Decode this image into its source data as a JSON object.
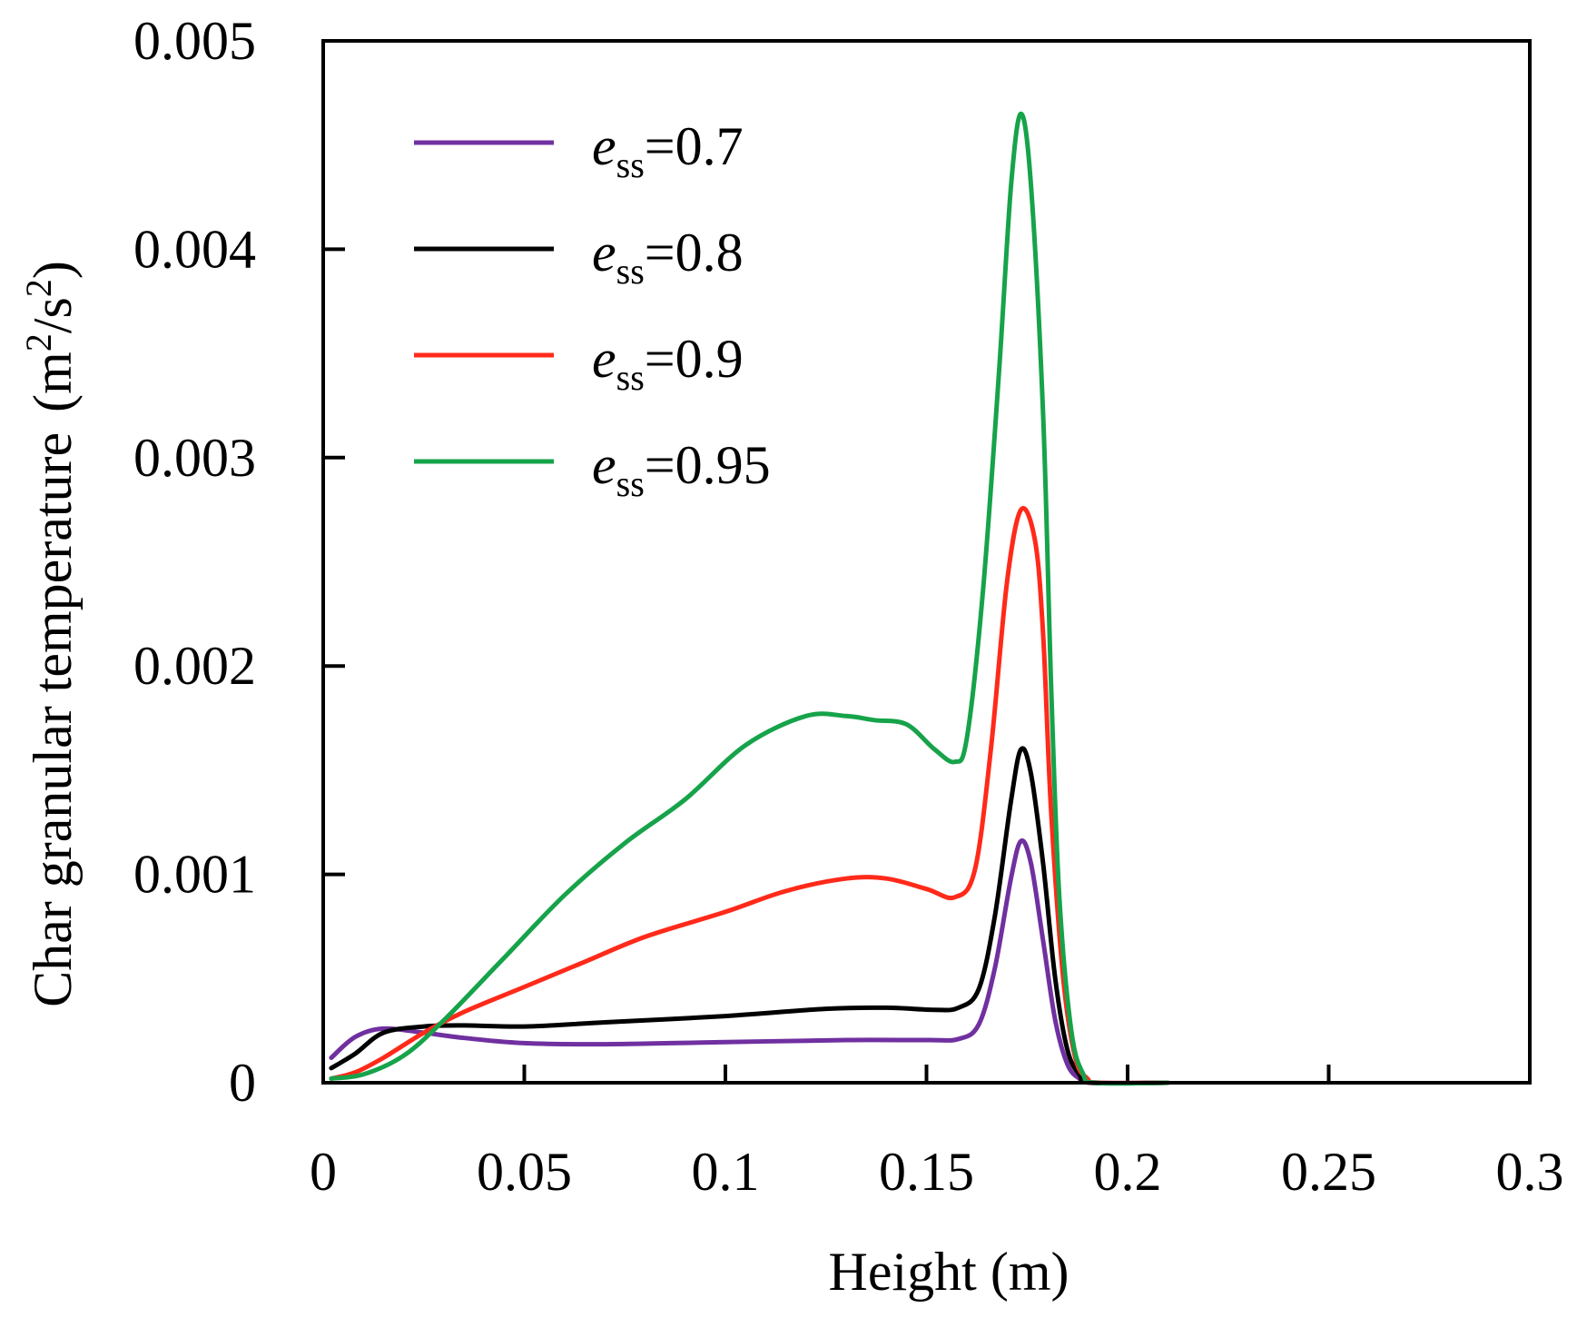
{
  "chart_data": {
    "type": "line",
    "title": "",
    "xlabel": "Height (m)",
    "ylabel": "Char granular temperature",
    "ylabel_unit": {
      "open": "(m",
      "sup1": "2",
      "mid": "/s",
      "sup2": "2",
      "close": ")"
    },
    "xlim": [
      0,
      0.3
    ],
    "ylim": [
      0,
      0.005
    ],
    "xticks": [
      0,
      0.05,
      0.1,
      0.15,
      0.2,
      0.25,
      0.3
    ],
    "xtick_labels": [
      "0",
      "0.05",
      "0.1",
      "0.15",
      "0.2",
      "0.25",
      "0.3"
    ],
    "yticks": [
      0,
      0.001,
      0.002,
      0.003,
      0.004,
      0.005
    ],
    "ytick_labels": [
      "0",
      "0.001",
      "0.002",
      "0.003",
      "0.004",
      "0.005"
    ],
    "grid": false,
    "legend_position": "top-left",
    "series": [
      {
        "name": "e_ss=0.7",
        "legend": {
          "main": "e",
          "sub": "ss",
          "rest": "=0.7"
        },
        "color": "#7030a0",
        "points": [
          [
            0.002,
            0.00012
          ],
          [
            0.008,
            0.00022
          ],
          [
            0.015,
            0.00026
          ],
          [
            0.025,
            0.00024
          ],
          [
            0.035,
            0.000215
          ],
          [
            0.05,
            0.00019
          ],
          [
            0.07,
            0.000185
          ],
          [
            0.1,
            0.000195
          ],
          [
            0.13,
            0.000205
          ],
          [
            0.15,
            0.000205
          ],
          [
            0.158,
            0.00021
          ],
          [
            0.163,
            0.00028
          ],
          [
            0.167,
            0.00055
          ],
          [
            0.171,
            0.00098
          ],
          [
            0.1735,
            0.00116
          ],
          [
            0.176,
            0.00105
          ],
          [
            0.179,
            0.00068
          ],
          [
            0.182,
            0.0003
          ],
          [
            0.185,
            9e-05
          ],
          [
            0.188,
            2e-05
          ],
          [
            0.191,
            0
          ],
          [
            0.21,
            0
          ]
        ]
      },
      {
        "name": "e_ss=0.8",
        "legend": {
          "main": "e",
          "sub": "ss",
          "rest": "=0.8"
        },
        "color": "#000000",
        "points": [
          [
            0.002,
            7e-05
          ],
          [
            0.008,
            0.00014
          ],
          [
            0.015,
            0.00024
          ],
          [
            0.025,
            0.00027
          ],
          [
            0.035,
            0.000275
          ],
          [
            0.05,
            0.00027
          ],
          [
            0.07,
            0.00029
          ],
          [
            0.1,
            0.00032
          ],
          [
            0.125,
            0.000355
          ],
          [
            0.14,
            0.00036
          ],
          [
            0.152,
            0.00035
          ],
          [
            0.158,
            0.00036
          ],
          [
            0.163,
            0.00045
          ],
          [
            0.167,
            0.0008
          ],
          [
            0.171,
            0.00135
          ],
          [
            0.1735,
            0.0016
          ],
          [
            0.176,
            0.00148
          ],
          [
            0.179,
            0.00105
          ],
          [
            0.182,
            0.0005
          ],
          [
            0.185,
            0.00016
          ],
          [
            0.188,
            4e-05
          ],
          [
            0.191,
            0
          ],
          [
            0.21,
            0
          ]
        ]
      },
      {
        "name": "e_ss=0.9",
        "legend": {
          "main": "e",
          "sub": "ss",
          "rest": "=0.9"
        },
        "color": "#ff2a1a",
        "points": [
          [
            0.002,
            2e-05
          ],
          [
            0.008,
            5e-05
          ],
          [
            0.015,
            0.00012
          ],
          [
            0.025,
            0.00024
          ],
          [
            0.035,
            0.00034
          ],
          [
            0.05,
            0.00046
          ],
          [
            0.065,
            0.00058
          ],
          [
            0.08,
            0.0007
          ],
          [
            0.1,
            0.00082
          ],
          [
            0.115,
            0.00092
          ],
          [
            0.13,
            0.00098
          ],
          [
            0.14,
            0.00098
          ],
          [
            0.15,
            0.00093
          ],
          [
            0.157,
            0.00089
          ],
          [
            0.162,
            0.00102
          ],
          [
            0.166,
            0.0016
          ],
          [
            0.17,
            0.0024
          ],
          [
            0.1735,
            0.00275
          ],
          [
            0.177,
            0.0026
          ],
          [
            0.179,
            0.00215
          ],
          [
            0.181,
            0.0013
          ],
          [
            0.184,
            0.0005
          ],
          [
            0.187,
            0.00012
          ],
          [
            0.19,
            2e-05
          ],
          [
            0.193,
            0
          ],
          [
            0.21,
            0
          ]
        ]
      },
      {
        "name": "e_ss=0.95",
        "legend": {
          "main": "e",
          "sub": "ss",
          "rest": "=0.95"
        },
        "color": "#16a34a",
        "points": [
          [
            0.002,
            2e-05
          ],
          [
            0.01,
            4e-05
          ],
          [
            0.02,
            0.00013
          ],
          [
            0.03,
            0.0003
          ],
          [
            0.045,
            0.0006
          ],
          [
            0.06,
            0.0009
          ],
          [
            0.075,
            0.00115
          ],
          [
            0.09,
            0.00136
          ],
          [
            0.105,
            0.00162
          ],
          [
            0.12,
            0.00176
          ],
          [
            0.13,
            0.00176
          ],
          [
            0.137,
            0.00174
          ],
          [
            0.145,
            0.00172
          ],
          [
            0.152,
            0.0016
          ],
          [
            0.157,
            0.00154
          ],
          [
            0.16,
            0.00165
          ],
          [
            0.164,
            0.00235
          ],
          [
            0.168,
            0.0034
          ],
          [
            0.171,
            0.0043
          ],
          [
            0.1735,
            0.00465
          ],
          [
            0.176,
            0.0043
          ],
          [
            0.179,
            0.0032
          ],
          [
            0.181,
            0.0019
          ],
          [
            0.183,
            0.0009
          ],
          [
            0.186,
            0.00025
          ],
          [
            0.189,
            4e-05
          ],
          [
            0.192,
            0
          ],
          [
            0.21,
            0
          ]
        ]
      }
    ]
  }
}
